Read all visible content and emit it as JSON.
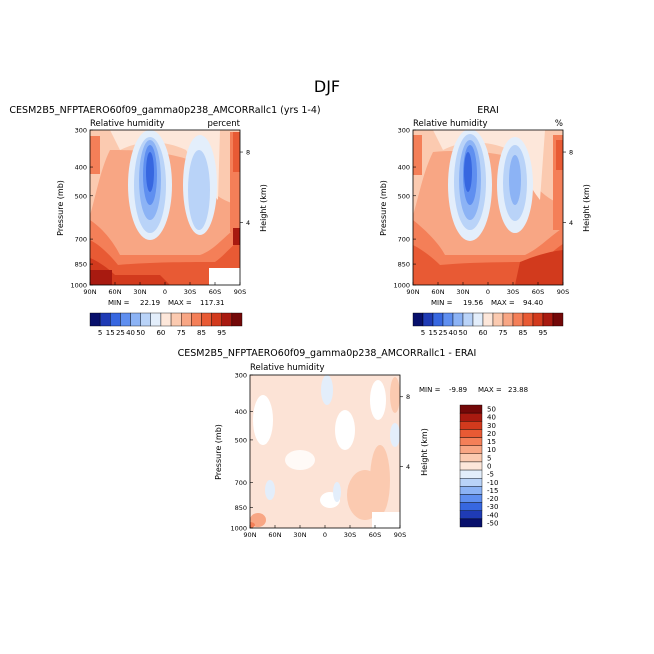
{
  "figure": {
    "season": "DJF"
  },
  "chart_data": [
    {
      "type": "heatmap",
      "id": "model",
      "title": "CESM2B5_NFPTAERO60f09_gamma0p238_AMCORRallc1 (yrs 1-4)",
      "subtitle_left": "Relative humidity",
      "subtitle_right": "percent",
      "xlabel": "",
      "ylabel": "Pressure (mb)",
      "ylabel_right": "Height (km)",
      "x_ticks": [
        "90N",
        "60N",
        "30N",
        "0",
        "30S",
        "60S",
        "90S"
      ],
      "y_ticks": [
        "300",
        "400",
        "500",
        "700",
        "850",
        "1000"
      ],
      "y_ticks_right": [
        "8",
        "4"
      ],
      "ylim": [
        1000,
        300
      ],
      "stats": {
        "min_label": "MIN =",
        "min": "22.19",
        "max_label": "MAX =",
        "max": "117.31"
      },
      "bands": [
        {
          "x": 90,
          "y": 300,
          "w": 72,
          "h": 6,
          "c": "#FDBFA4"
        },
        {
          "x": 92,
          "y": 306,
          "w": 10,
          "h": 35,
          "c": "#F79067"
        },
        {
          "x": 233,
          "y": 306,
          "w": 7,
          "h": 40,
          "c": "#F46D43"
        }
      ]
    },
    {
      "type": "heatmap",
      "id": "obs",
      "title": "ERAI",
      "subtitle_left": "Relative humidity",
      "subtitle_right": "%",
      "xlabel": "",
      "ylabel": "Pressure (mb)",
      "ylabel_right": "Height (km)",
      "x_ticks": [
        "90N",
        "60N",
        "30N",
        "0",
        "30S",
        "60S",
        "90S"
      ],
      "y_ticks": [
        "300",
        "400",
        "500",
        "700",
        "850",
        "1000"
      ],
      "y_ticks_right": [
        "8",
        "4"
      ],
      "ylim": [
        1000,
        300
      ],
      "stats": {
        "min_label": "MIN =",
        "min": "19.56",
        "max_label": "MAX =",
        "max": "94.40"
      }
    },
    {
      "type": "heatmap",
      "id": "diff",
      "title": "CESM2B5_NFPTAERO60f09_gamma0p238_AMCORRallc1 - ERAI",
      "subtitle_left": "Relative humidity",
      "xlabel": "",
      "ylabel": "Pressure (mb)",
      "ylabel_right": "Height (km)",
      "x_ticks": [
        "90N",
        "60N",
        "30N",
        "0",
        "30S",
        "60S",
        "90S"
      ],
      "y_ticks": [
        "300",
        "400",
        "500",
        "700",
        "850",
        "1000"
      ],
      "y_ticks_right": [
        "8",
        "4"
      ],
      "ylim": [
        1000,
        300
      ],
      "stats": {
        "min_label": "MIN =",
        "min": "-9.89",
        "max_label": "MAX =",
        "max": "23.88"
      }
    }
  ],
  "colorbars": {
    "absolute": {
      "orientation": "horizontal",
      "labels": [
        "5",
        "15",
        "25",
        "40",
        "50",
        "60",
        "75",
        "85",
        "95"
      ],
      "colors": [
        "#08106C",
        "#1F3BB5",
        "#3767E0",
        "#5F8FF0",
        "#8CB3F5",
        "#B9D3F8",
        "#E3EEFB",
        "#FDE7DA",
        "#FBCAB0",
        "#F8A684",
        "#F47F58",
        "#E85A34",
        "#D23A1D",
        "#A81A10",
        "#730808"
      ]
    },
    "difference": {
      "orientation": "vertical",
      "labels": [
        "50",
        "40",
        "30",
        "20",
        "15",
        "10",
        "5",
        "0",
        "-5",
        "-10",
        "-15",
        "-20",
        "-30",
        "-40",
        "-50"
      ],
      "colors": [
        "#730808",
        "#A81A10",
        "#D23A1D",
        "#E85A34",
        "#F47F58",
        "#F8A684",
        "#FBCAB0",
        "#FDE7DA",
        "#E3EEFB",
        "#B9D3F8",
        "#8CB3F5",
        "#5F8FF0",
        "#3767E0",
        "#1F3BB5",
        "#08106C"
      ]
    }
  }
}
